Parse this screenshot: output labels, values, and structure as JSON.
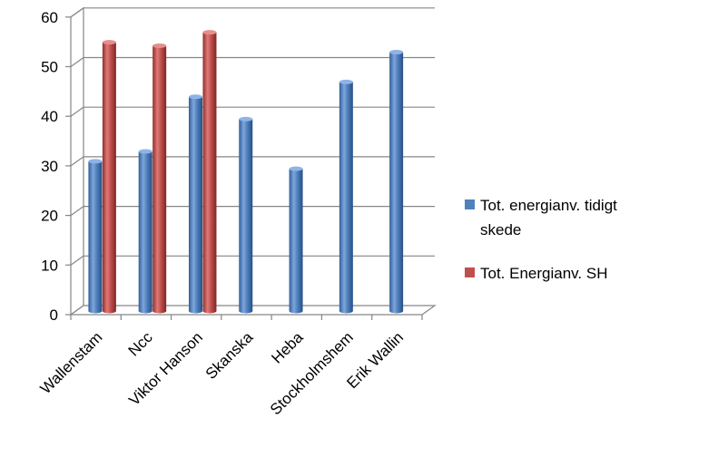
{
  "chart_data": {
    "type": "bar",
    "title": "",
    "xlabel": "",
    "ylabel": "",
    "ylim": [
      0,
      60
    ],
    "yticks": [
      0,
      10,
      20,
      30,
      40,
      50,
      60
    ],
    "grid": true,
    "legend_position": "right",
    "style": "3d-cylinder",
    "categories": [
      "Wallenstam",
      "Ncc",
      "Viktor Hanson",
      "Skanska",
      "Heba",
      "Stockholmshem",
      "Erik Wallin"
    ],
    "series": [
      {
        "name": "Tot. energianv. tidigt skede",
        "color": "#4f81bd",
        "values": [
          30,
          32,
          43,
          38.5,
          28.5,
          46,
          52
        ]
      },
      {
        "name": "Tot. Energianv. SH",
        "color": "#c0504d",
        "values": [
          54,
          53.3,
          56,
          null,
          null,
          null,
          null
        ]
      }
    ],
    "legend": {
      "lines": [
        [
          "Tot. energianv. tidigt",
          "skede"
        ],
        [
          "Tot. Energianv. SH"
        ]
      ]
    }
  }
}
